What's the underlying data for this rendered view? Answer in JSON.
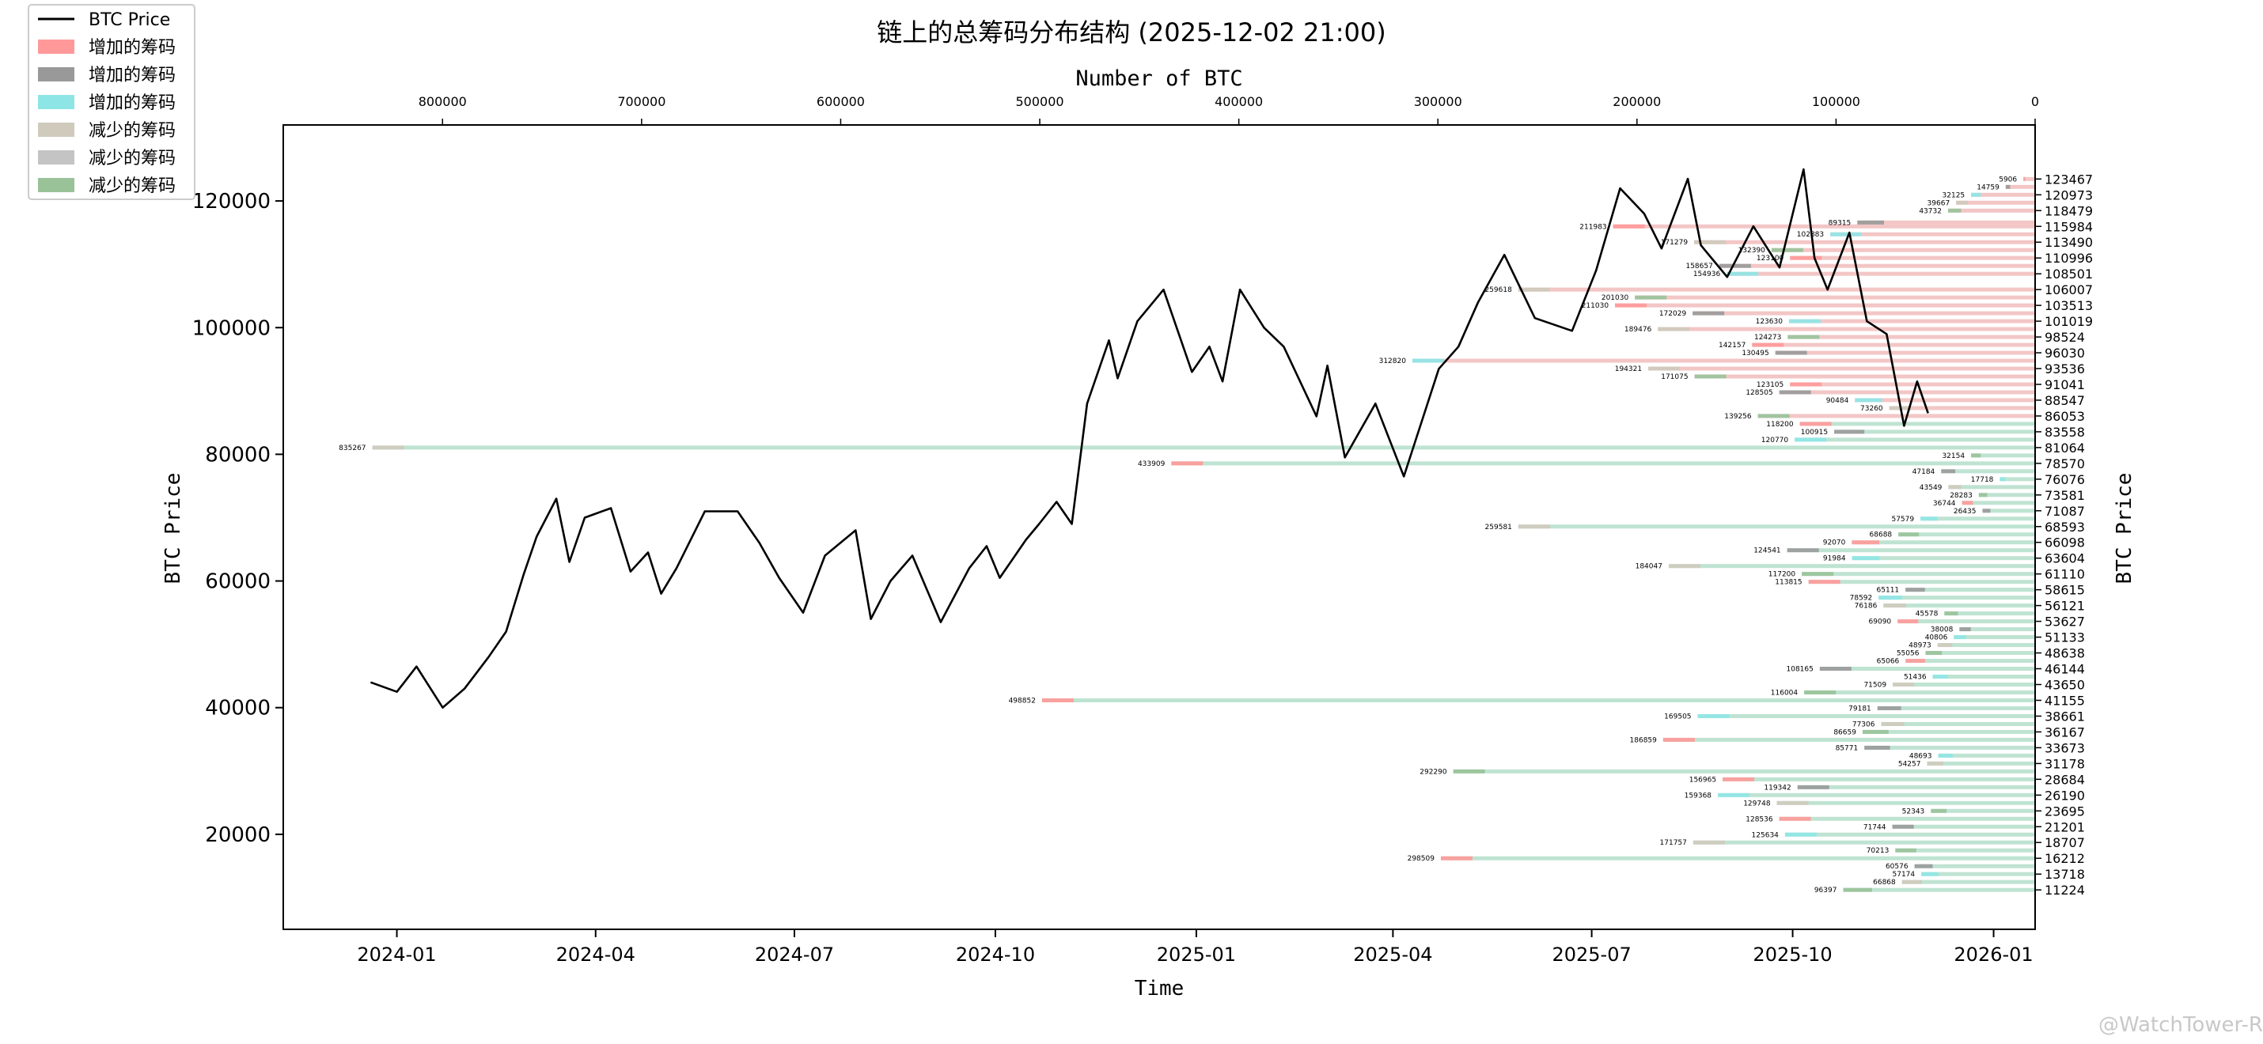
{
  "chart_data": {
    "type": "line",
    "title": "链上的总筹码分布结构 (2025-12-02 21:00)",
    "top_axis_label": "Number of BTC",
    "xlabel": "Time",
    "ylabel_left": "BTC Price",
    "ylabel_right": "BTC Price",
    "ylim": [
      5000,
      132000
    ],
    "top_xlim": [
      880000,
      0
    ],
    "top_ticks": [
      "800000",
      "700000",
      "600000",
      "500000",
      "400000",
      "300000",
      "200000",
      "100000",
      "0"
    ],
    "top_tick_values": [
      800000,
      700000,
      600000,
      500000,
      400000,
      300000,
      200000,
      100000,
      0
    ],
    "x_ticks": [
      "2024-01",
      "2024-04",
      "2024-07",
      "2024-10",
      "2025-01",
      "2025-04",
      "2025-07",
      "2025-10",
      "2026-01"
    ],
    "y_ticks": [
      "20000",
      "40000",
      "60000",
      "80000",
      "100000",
      "120000"
    ],
    "y_tick_values": [
      20000,
      40000,
      60000,
      80000,
      100000,
      120000
    ],
    "legend_position": "top-left (outside plot)",
    "legend": [
      {
        "label": "BTC Price",
        "color": "#000000",
        "kind": "line"
      },
      {
        "label": "增加的筹码",
        "color": "#ff9999",
        "kind": "patch"
      },
      {
        "label": "增加的筹码",
        "color": "#999999",
        "kind": "patch"
      },
      {
        "label": "增加的筹码",
        "color": "#8ee5e5",
        "kind": "patch"
      },
      {
        "label": "减少的筹码",
        "color": "#cfcabc",
        "kind": "patch"
      },
      {
        "label": "减少的筹码",
        "color": "#c4c4c4",
        "kind": "patch"
      },
      {
        "label": "减少的筹码",
        "color": "#99c299",
        "kind": "patch"
      }
    ],
    "price_series_name": "BTC Price",
    "price_series": [
      [
        "2023-12-20",
        44000
      ],
      [
        "2024-01-01",
        42500
      ],
      [
        "2024-01-10",
        46500
      ],
      [
        "2024-01-22",
        40000
      ],
      [
        "2024-02-01",
        43000
      ],
      [
        "2024-02-12",
        48000
      ],
      [
        "2024-02-20",
        52000
      ],
      [
        "2024-02-28",
        61000
      ],
      [
        "2024-03-05",
        67000
      ],
      [
        "2024-03-14",
        73000
      ],
      [
        "2024-03-20",
        63000
      ],
      [
        "2024-03-27",
        70000
      ],
      [
        "2024-04-08",
        71500
      ],
      [
        "2024-04-17",
        61500
      ],
      [
        "2024-04-25",
        64500
      ],
      [
        "2024-05-01",
        58000
      ],
      [
        "2024-05-08",
        62000
      ],
      [
        "2024-05-21",
        71000
      ],
      [
        "2024-06-05",
        71000
      ],
      [
        "2024-06-15",
        66000
      ],
      [
        "2024-06-24",
        60500
      ],
      [
        "2024-07-05",
        55000
      ],
      [
        "2024-07-15",
        64000
      ],
      [
        "2024-07-29",
        68000
      ],
      [
        "2024-08-05",
        54000
      ],
      [
        "2024-08-14",
        60000
      ],
      [
        "2024-08-24",
        64000
      ],
      [
        "2024-09-06",
        53500
      ],
      [
        "2024-09-19",
        62000
      ],
      [
        "2024-09-27",
        65500
      ],
      [
        "2024-10-03",
        60500
      ],
      [
        "2024-10-15",
        66500
      ],
      [
        "2024-10-21",
        69000
      ],
      [
        "2024-10-29",
        72500
      ],
      [
        "2024-11-05",
        69000
      ],
      [
        "2024-11-12",
        88000
      ],
      [
        "2024-11-22",
        98000
      ],
      [
        "2024-11-26",
        92000
      ],
      [
        "2024-12-05",
        101000
      ],
      [
        "2024-12-17",
        106000
      ],
      [
        "2024-12-30",
        93000
      ],
      [
        "2025-01-07",
        97000
      ],
      [
        "2025-01-13",
        91500
      ],
      [
        "2025-01-21",
        106000
      ],
      [
        "2025-02-01",
        100000
      ],
      [
        "2025-02-10",
        97000
      ],
      [
        "2025-02-25",
        86000
      ],
      [
        "2025-03-02",
        94000
      ],
      [
        "2025-03-10",
        79500
      ],
      [
        "2025-03-24",
        88000
      ],
      [
        "2025-04-06",
        76500
      ],
      [
        "2025-04-14",
        85000
      ],
      [
        "2025-04-22",
        93500
      ],
      [
        "2025-05-01",
        97000
      ],
      [
        "2025-05-10",
        104000
      ],
      [
        "2025-05-22",
        111500
      ],
      [
        "2025-06-05",
        101500
      ],
      [
        "2025-06-22",
        99500
      ],
      [
        "2025-07-03",
        109000
      ],
      [
        "2025-07-14",
        122000
      ],
      [
        "2025-07-25",
        118000
      ],
      [
        "2025-08-02",
        112500
      ],
      [
        "2025-08-14",
        123500
      ],
      [
        "2025-08-20",
        113000
      ],
      [
        "2025-09-01",
        108000
      ],
      [
        "2025-09-13",
        116000
      ],
      [
        "2025-09-25",
        109500
      ],
      [
        "2025-10-06",
        125000
      ],
      [
        "2025-10-11",
        111000
      ],
      [
        "2025-10-17",
        106000
      ],
      [
        "2025-10-27",
        115000
      ],
      [
        "2025-11-04",
        101000
      ],
      [
        "2025-11-13",
        99000
      ],
      [
        "2025-11-21",
        84500
      ],
      [
        "2025-11-27",
        91500
      ],
      [
        "2025-12-02",
        86500
      ]
    ],
    "right_ticks": [
      "123467",
      "120973",
      "118479",
      "115984",
      "113490",
      "110996",
      "108501",
      "106007",
      "103513",
      "101019",
      "98524",
      "96030",
      "93536",
      "91041",
      "88547",
      "86053",
      "83558",
      "81064",
      "78570",
      "76076",
      "73581",
      "71087",
      "68593",
      "66098",
      "63604",
      "61110",
      "58615",
      "56121",
      "53627",
      "51133",
      "48638",
      "46144",
      "43650",
      "41155",
      "38661",
      "36167",
      "33673",
      "31178",
      "28684",
      "26190",
      "23695",
      "21201",
      "18707",
      "16212",
      "13718",
      "11224"
    ],
    "bins": [
      {
        "price": 123467,
        "btc": 5906,
        "label": "5906"
      },
      {
        "price": 122220,
        "btc": 14759,
        "label": "14759"
      },
      {
        "price": 120973,
        "btc": 32125,
        "label": "32125"
      },
      {
        "price": 119726,
        "btc": 39667,
        "label": "39667"
      },
      {
        "price": 118479,
        "btc": 43732,
        "label": "43732"
      },
      {
        "price": 115984,
        "btc": 211983,
        "label": "211983"
      },
      {
        "price": 116600,
        "btc": 89315,
        "label": "89315"
      },
      {
        "price": 114737,
        "btc": 102883,
        "label": "102883"
      },
      {
        "price": 113490,
        "btc": 171279,
        "label": "171279"
      },
      {
        "price": 112243,
        "btc": 132390,
        "label": "132390"
      },
      {
        "price": 111000,
        "btc": 123100,
        "label": "123100"
      },
      {
        "price": 109749,
        "btc": 158657,
        "label": "158657"
      },
      {
        "price": 108501,
        "btc": 154936,
        "label": "154936"
      },
      {
        "price": 106007,
        "btc": 259618,
        "label": "259618"
      },
      {
        "price": 104760,
        "btc": 201030,
        "label": "201030"
      },
      {
        "price": 103513,
        "btc": 211030,
        "label": "211030"
      },
      {
        "price": 102266,
        "btc": 172029,
        "label": "172029"
      },
      {
        "price": 101019,
        "btc": 123630,
        "label": "123630"
      },
      {
        "price": 99772,
        "btc": 189476,
        "label": "189476"
      },
      {
        "price": 98524,
        "btc": 124273,
        "label": "124273"
      },
      {
        "price": 97277,
        "btc": 142157,
        "label": "142157"
      },
      {
        "price": 96030,
        "btc": 130495,
        "label": "130495"
      },
      {
        "price": 94783,
        "btc": 312820,
        "label": "312820"
      },
      {
        "price": 93536,
        "btc": 194321,
        "label": "194321"
      },
      {
        "price": 92289,
        "btc": 171075,
        "label": "171075"
      },
      {
        "price": 91041,
        "btc": 123105,
        "label": "123105"
      },
      {
        "price": 89794,
        "btc": 128505,
        "label": "128505"
      },
      {
        "price": 88547,
        "btc": 90484,
        "label": "90484"
      },
      {
        "price": 87300,
        "btc": 73260,
        "label": "73260"
      },
      {
        "price": 86053,
        "btc": 139256,
        "label": "139256"
      },
      {
        "price": 84806,
        "btc": 118200,
        "label": "118200"
      },
      {
        "price": 83558,
        "btc": 100915,
        "label": "100915"
      },
      {
        "price": 82311,
        "btc": 120770,
        "label": "120770"
      },
      {
        "price": 81064,
        "btc": 835267,
        "label": "835267"
      },
      {
        "price": 79817,
        "btc": 32154,
        "label": "32154"
      },
      {
        "price": 78570,
        "btc": 433909,
        "label": "433909"
      },
      {
        "price": 77323,
        "btc": 47184,
        "label": "47184"
      },
      {
        "price": 76076,
        "btc": 17718,
        "label": "17718"
      },
      {
        "price": 74829,
        "btc": 43549,
        "label": "43549"
      },
      {
        "price": 73581,
        "btc": 28283,
        "label": "28283"
      },
      {
        "price": 72334,
        "btc": 36744,
        "label": "36744"
      },
      {
        "price": 71087,
        "btc": 26435,
        "label": "26435"
      },
      {
        "price": 69840,
        "btc": 57579,
        "label": "57579"
      },
      {
        "price": 68593,
        "btc": 259581,
        "label": "259581"
      },
      {
        "price": 67346,
        "btc": 68688,
        "label": "68688"
      },
      {
        "price": 66098,
        "btc": 92070,
        "label": "92070"
      },
      {
        "price": 64851,
        "btc": 124541,
        "label": "124541"
      },
      {
        "price": 63604,
        "btc": 91984,
        "label": "91984"
      },
      {
        "price": 62357,
        "btc": 184047,
        "label": "184047"
      },
      {
        "price": 61110,
        "btc": 117200,
        "label": "117200"
      },
      {
        "price": 59863,
        "btc": 113815,
        "label": "113815"
      },
      {
        "price": 58615,
        "btc": 65111,
        "label": "65111"
      },
      {
        "price": 57368,
        "btc": 78592,
        "label": "78592"
      },
      {
        "price": 56121,
        "btc": 76186,
        "label": "76186"
      },
      {
        "price": 54874,
        "btc": 45578,
        "label": "45578"
      },
      {
        "price": 53627,
        "btc": 69090,
        "label": "69090"
      },
      {
        "price": 52380,
        "btc": 38008,
        "label": "38008"
      },
      {
        "price": 51133,
        "btc": 40806,
        "label": "40806"
      },
      {
        "price": 49886,
        "btc": 48973,
        "label": "48973"
      },
      {
        "price": 48638,
        "btc": 55056,
        "label": "55056"
      },
      {
        "price": 47391,
        "btc": 65066,
        "label": "65066"
      },
      {
        "price": 46144,
        "btc": 108165,
        "label": "108165"
      },
      {
        "price": 44897,
        "btc": 51436,
        "label": "51436"
      },
      {
        "price": 43650,
        "btc": 71509,
        "label": "71509"
      },
      {
        "price": 42403,
        "btc": 116004,
        "label": "116004"
      },
      {
        "price": 41155,
        "btc": 498852,
        "label": "498852"
      },
      {
        "price": 39908,
        "btc": 79181,
        "label": "79181"
      },
      {
        "price": 38661,
        "btc": 169505,
        "label": "169505"
      },
      {
        "price": 37414,
        "btc": 77306,
        "label": "77306"
      },
      {
        "price": 36167,
        "btc": 86659,
        "label": "86659"
      },
      {
        "price": 34920,
        "btc": 186859,
        "label": "186859"
      },
      {
        "price": 33673,
        "btc": 85771,
        "label": "85771"
      },
      {
        "price": 32426,
        "btc": 48693,
        "label": "48693"
      },
      {
        "price": 31178,
        "btc": 54257,
        "label": "54257"
      },
      {
        "price": 29931,
        "btc": 292290,
        "label": "292290"
      },
      {
        "price": 28684,
        "btc": 156965,
        "label": "156965"
      },
      {
        "price": 27437,
        "btc": 119342,
        "label": "119342"
      },
      {
        "price": 26190,
        "btc": 159368,
        "label": "159368"
      },
      {
        "price": 24943,
        "btc": 129748,
        "label": "129748"
      },
      {
        "price": 23695,
        "btc": 52343,
        "label": "52343"
      },
      {
        "price": 22448,
        "btc": 128536,
        "label": "128536"
      },
      {
        "price": 21201,
        "btc": 71744,
        "label": "71744"
      },
      {
        "price": 19954,
        "btc": 125634,
        "label": "125634"
      },
      {
        "price": 18707,
        "btc": 171757,
        "label": "171757"
      },
      {
        "price": 17460,
        "btc": 70213,
        "label": "70213"
      },
      {
        "price": 16212,
        "btc": 298509,
        "label": "298509"
      },
      {
        "price": 14965,
        "btc": 60576,
        "label": "60576"
      },
      {
        "price": 13718,
        "btc": 57174,
        "label": "57174"
      },
      {
        "price": 12471,
        "btc": 66868,
        "label": "66868"
      },
      {
        "price": 11224,
        "btc": 96397,
        "label": "96397"
      }
    ],
    "colors": {
      "above_base": "#f3c6c6",
      "below_base": "#bfe3d2",
      "increase_red": "#ff9999",
      "increase_gray": "#999999",
      "increase_cyan": "#8ee5e5",
      "decrease_tan": "#cfcabc",
      "decrease_gray": "#c4c4c4",
      "decrease_green": "#99c299",
      "price_line": "#000000"
    }
  },
  "watermark": "@WatchTower-R"
}
